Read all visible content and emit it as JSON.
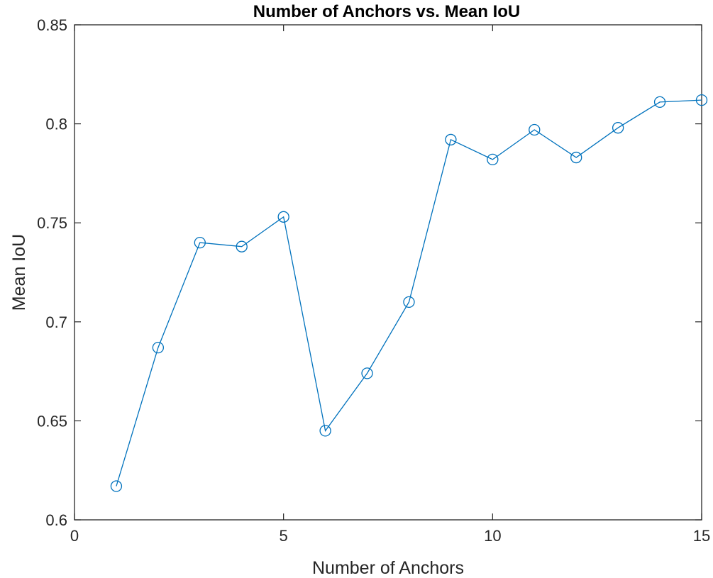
{
  "chart_data": {
    "type": "line",
    "title": "Number of Anchors vs. Mean IoU",
    "xlabel": "Number of Anchors",
    "ylabel": "Mean IoU",
    "xlim": [
      0,
      15
    ],
    "ylim": [
      0.6,
      0.85
    ],
    "x_ticks": [
      0,
      5,
      10,
      15
    ],
    "x_tick_labels": [
      "0",
      "5",
      "10",
      "15"
    ],
    "y_ticks": [
      0.6,
      0.65,
      0.7,
      0.75,
      0.8,
      0.85
    ],
    "y_tick_labels": [
      "0.6",
      "0.65",
      "0.7",
      "0.75",
      "0.8",
      "0.85"
    ],
    "grid": false,
    "legend": "none",
    "marker": "circle",
    "series": [
      {
        "color": "#0072bd",
        "x": [
          1,
          2,
          3,
          4,
          5,
          6,
          7,
          8,
          9,
          10,
          11,
          12,
          13,
          14,
          15
        ],
        "y": [
          0.617,
          0.687,
          0.74,
          0.738,
          0.753,
          0.645,
          0.674,
          0.71,
          0.792,
          0.782,
          0.797,
          0.783,
          0.798,
          0.811,
          0.812
        ]
      }
    ]
  }
}
